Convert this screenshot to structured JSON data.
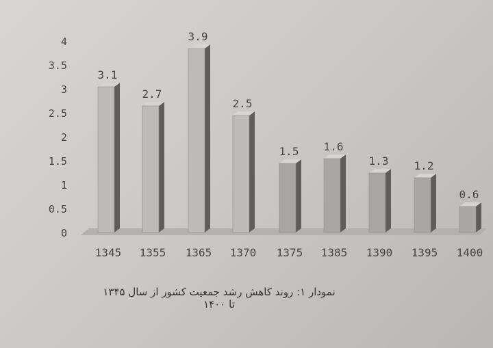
{
  "chart_data": {
    "type": "bar",
    "style": "3d-bar",
    "categories": [
      "1345",
      "1355",
      "1365",
      "1370",
      "1375",
      "1385",
      "1390",
      "1395",
      "1400"
    ],
    "values": [
      3.1,
      2.7,
      3.9,
      2.5,
      1.5,
      1.6,
      1.3,
      1.2,
      0.6
    ],
    "data_labels": [
      "3.1",
      "2.7",
      "3.9",
      "2.5",
      "1.5",
      "1.6",
      "1.3",
      "1.2",
      "0.6"
    ],
    "yticks": [
      "0",
      "0.5",
      "1",
      "1.5",
      "2",
      "2.5",
      "3",
      "3.5",
      "4"
    ],
    "ylim": [
      0,
      4
    ],
    "grid": false,
    "legend": "none",
    "colors": {
      "light_bar": "#bdbbb8",
      "dark_bar": "#a9a7a4",
      "side": "#5e5d5b",
      "text": "#444444"
    },
    "caption": "نمودار ۱: روند کاهش رشد جمعیت کشور از سال ۱۳۴۵ تا ۱۴۰۰"
  }
}
